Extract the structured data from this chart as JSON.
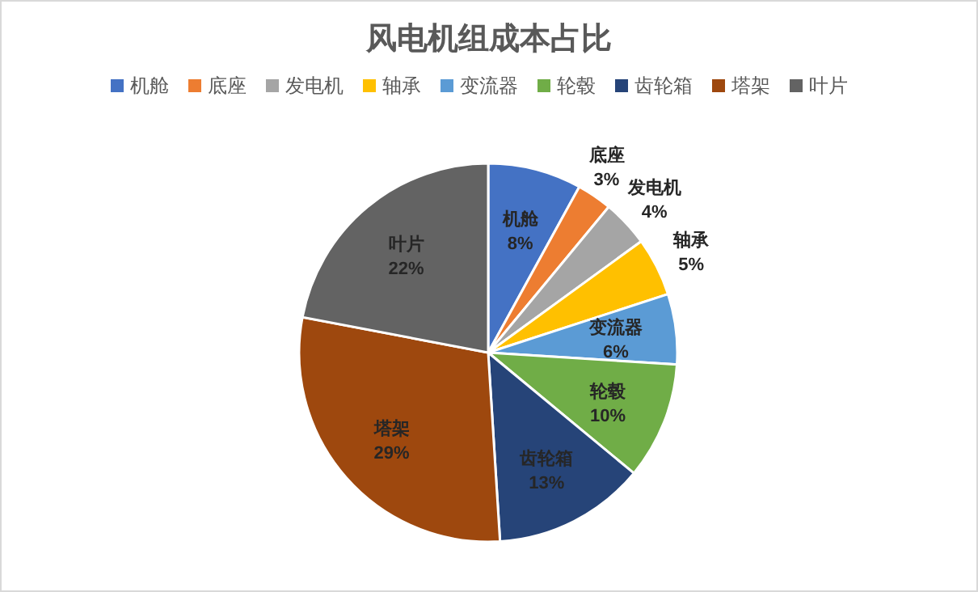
{
  "chart_data": {
    "type": "pie",
    "title": "风电机组成本占比",
    "categories": [
      "机舱",
      "底座",
      "发电机",
      "轴承",
      "变流器",
      "轮毂",
      "齿轮箱",
      "塔架",
      "叶片"
    ],
    "values": [
      8,
      3,
      4,
      5,
      6,
      10,
      13,
      29,
      22
    ],
    "colors": [
      "#4472c4",
      "#ed7d31",
      "#a5a5a5",
      "#ffc000",
      "#5b9bd5",
      "#70ad47",
      "#264478",
      "#9e480e",
      "#636363"
    ],
    "value_labels": [
      "8%",
      "3%",
      "4%",
      "5%",
      "6%",
      "10%",
      "13%",
      "29%",
      "22%"
    ],
    "legend": "top"
  }
}
